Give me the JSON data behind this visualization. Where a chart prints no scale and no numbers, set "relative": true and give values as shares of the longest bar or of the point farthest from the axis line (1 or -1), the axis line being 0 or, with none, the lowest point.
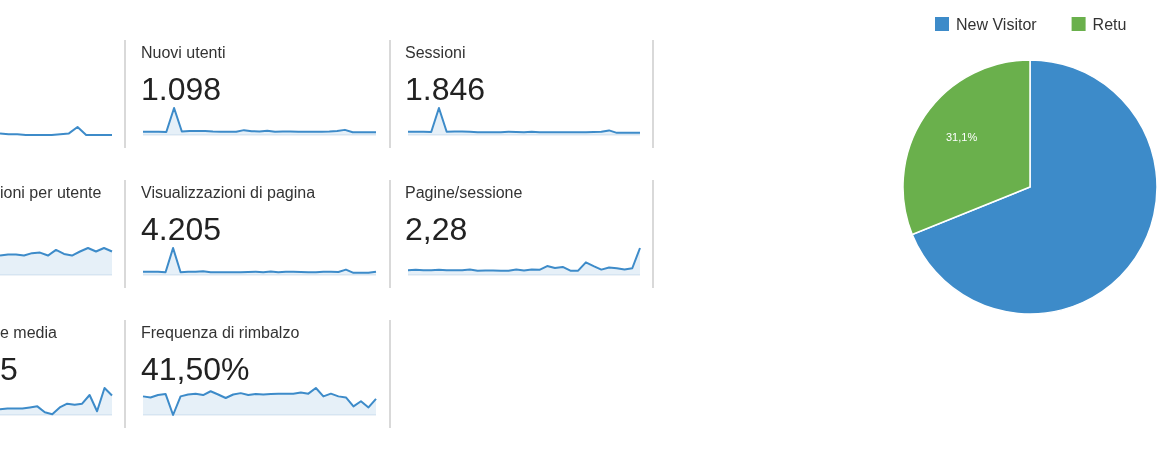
{
  "chart_data": [
    {
      "type": "line",
      "relative": true,
      "categories": [
        null,
        null,
        null,
        null,
        null,
        null,
        null,
        null,
        null,
        null,
        null,
        null,
        null,
        null
      ],
      "values": [
        0.2,
        0.1,
        0.1,
        0,
        0,
        0,
        0,
        0.1,
        0.2,
        1,
        0,
        0,
        0,
        0
      ],
      "color": "#3d8bc9"
    },
    {
      "type": "area",
      "relative": true,
      "title": "Nuovi utenti",
      "subtitle": "1.098",
      "categories": [
        null,
        null,
        null,
        null,
        null,
        null,
        null,
        null,
        null,
        null,
        null,
        null,
        null,
        null,
        null,
        null,
        null,
        null,
        null,
        null,
        null,
        null,
        null,
        null,
        null,
        null,
        null,
        null,
        null,
        null,
        null
      ],
      "values": [
        0.12,
        0.12,
        0.12,
        0.11,
        1,
        0.13,
        0.15,
        0.15,
        0.15,
        0.13,
        0.12,
        0.12,
        0.12,
        0.18,
        0.14,
        0.13,
        0.16,
        0.12,
        0.13,
        0.13,
        0.12,
        0.12,
        0.12,
        0.12,
        0.13,
        0.15,
        0.19,
        0.1,
        0.1,
        0.1,
        0.1
      ],
      "color": "#3d8bc9"
    },
    {
      "type": "area",
      "relative": true,
      "title": "Sessioni",
      "subtitle": "1.846",
      "categories": [
        null,
        null,
        null,
        null,
        null,
        null,
        null,
        null,
        null,
        null,
        null,
        null,
        null,
        null,
        null,
        null,
        null,
        null,
        null,
        null,
        null,
        null,
        null,
        null,
        null,
        null,
        null,
        null,
        null,
        null,
        null
      ],
      "values": [
        0.12,
        0.12,
        0.12,
        0.11,
        1,
        0.12,
        0.13,
        0.13,
        0.12,
        0.1,
        0.1,
        0.1,
        0.1,
        0.12,
        0.11,
        0.1,
        0.12,
        0.1,
        0.1,
        0.1,
        0.1,
        0.1,
        0.1,
        0.1,
        0.11,
        0.12,
        0.17,
        0.08,
        0.08,
        0.08,
        0.08
      ],
      "color": "#3d8bc9"
    },
    {
      "type": "pie",
      "categories": [
        "New Visitor",
        "Retu"
      ],
      "values": [
        68.9,
        31.1
      ],
      "colors": [
        "#3d8bc9",
        "#6ab04c"
      ],
      "value_labels": [
        null,
        "31,1%"
      ],
      "legend": "top"
    },
    {
      "type": "area",
      "relative": true,
      "title": "ioni per utente",
      "categories": [
        null,
        null,
        null,
        null,
        null,
        null,
        null,
        null,
        null,
        null,
        null,
        null,
        null,
        null,
        null
      ],
      "values": [
        0.72,
        0.76,
        0.76,
        0.72,
        0.81,
        0.83,
        0.72,
        0.93,
        0.78,
        0.72,
        0.87,
        1,
        0.87,
        1,
        0.87
      ],
      "color": "#3d8bc9"
    },
    {
      "type": "area",
      "relative": true,
      "title": "Visualizzazioni di pagina",
      "subtitle": "4.205",
      "categories": [
        null,
        null,
        null,
        null,
        null,
        null,
        null,
        null,
        null,
        null,
        null,
        null,
        null,
        null,
        null,
        null,
        null,
        null,
        null,
        null,
        null,
        null,
        null,
        null,
        null,
        null,
        null,
        null,
        null,
        null,
        null,
        null
      ],
      "values": [
        0.12,
        0.12,
        0.12,
        0.1,
        1,
        0.1,
        0.12,
        0.12,
        0.14,
        0.1,
        0.1,
        0.1,
        0.1,
        0.1,
        0.11,
        0.12,
        0.1,
        0.13,
        0.1,
        0.12,
        0.12,
        0.11,
        0.1,
        0.1,
        0.12,
        0.12,
        0.11,
        0.2,
        0.08,
        0.08,
        0.08,
        0.12
      ],
      "color": "#3d8bc9"
    },
    {
      "type": "area",
      "relative": true,
      "title": "Pagine/sessione",
      "subtitle": "2,28",
      "categories": [
        null,
        null,
        null,
        null,
        null,
        null,
        null,
        null,
        null,
        null,
        null,
        null,
        null,
        null,
        null,
        null,
        null,
        null,
        null,
        null,
        null,
        null,
        null,
        null,
        null,
        null,
        null,
        null,
        null,
        null,
        null
      ],
      "values": [
        0.18,
        0.19,
        0.18,
        0.18,
        0.19,
        0.18,
        0.18,
        0.18,
        0.2,
        0.16,
        0.17,
        0.17,
        0.16,
        0.16,
        0.2,
        0.17,
        0.2,
        0.19,
        0.33,
        0.26,
        0.3,
        0.16,
        0.16,
        0.47,
        0.33,
        0.2,
        0.28,
        0.25,
        0.2,
        0.25,
        1
      ],
      "color": "#3d8bc9"
    },
    {
      "type": "area",
      "relative": true,
      "title": "e media",
      "subtitle": "5",
      "categories": [
        null,
        null,
        null,
        null,
        null,
        null,
        null,
        null,
        null,
        null,
        null,
        null,
        null,
        null,
        null,
        null
      ],
      "values": [
        0.21,
        0.24,
        0.24,
        0.24,
        0.28,
        0.32,
        0.1,
        0.03,
        0.28,
        0.42,
        0.38,
        0.42,
        0.74,
        0.14,
        1,
        0.72
      ],
      "color": "#3d8bc9"
    },
    {
      "type": "area",
      "relative": true,
      "title": "Frequenza di rimbalzo",
      "subtitle": "41,50%",
      "categories": [
        null,
        null,
        null,
        null,
        null,
        null,
        null,
        null,
        null,
        null,
        null,
        null,
        null,
        null,
        null,
        null,
        null,
        null,
        null,
        null,
        null,
        null,
        null,
        null,
        null,
        null,
        null,
        null,
        null,
        null,
        null,
        null
      ],
      "values": [
        0.69,
        0.65,
        0.74,
        0.78,
        0,
        0.69,
        0.76,
        0.79,
        0.74,
        0.88,
        0.76,
        0.63,
        0.76,
        0.81,
        0.74,
        0.78,
        0.76,
        0.78,
        0.79,
        0.79,
        0.79,
        0.83,
        0.79,
        1,
        0.69,
        0.79,
        0.69,
        0.65,
        0.32,
        0.51,
        0.28,
        0.6
      ],
      "color": "#3d8bc9"
    }
  ]
}
